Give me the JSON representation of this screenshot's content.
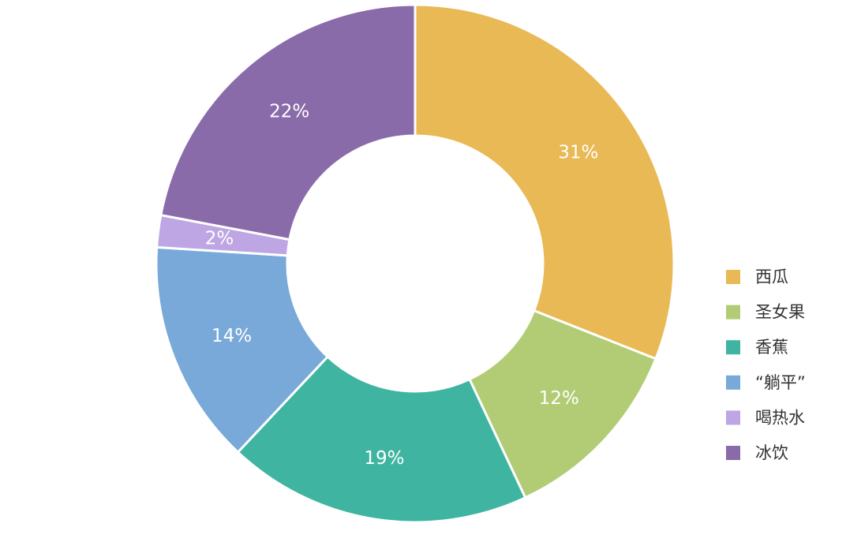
{
  "chart_data": {
    "type": "pie",
    "donut": true,
    "categories": [
      "西瓜",
      "圣女果",
      "香蕉",
      "“躺平”",
      "喝热水",
      "冰饮"
    ],
    "values": [
      31,
      12,
      19,
      14,
      2,
      22
    ],
    "value_labels": [
      "31%",
      "12%",
      "19%",
      "14%",
      "2%",
      "22%"
    ],
    "colors": [
      "#E8B955",
      "#B2CC75",
      "#3FB5A1",
      "#78A9D8",
      "#BEA5E3",
      "#8A6BAA"
    ],
    "legend_position": "right",
    "start_angle": "12 o'clock",
    "direction": "clockwise"
  }
}
